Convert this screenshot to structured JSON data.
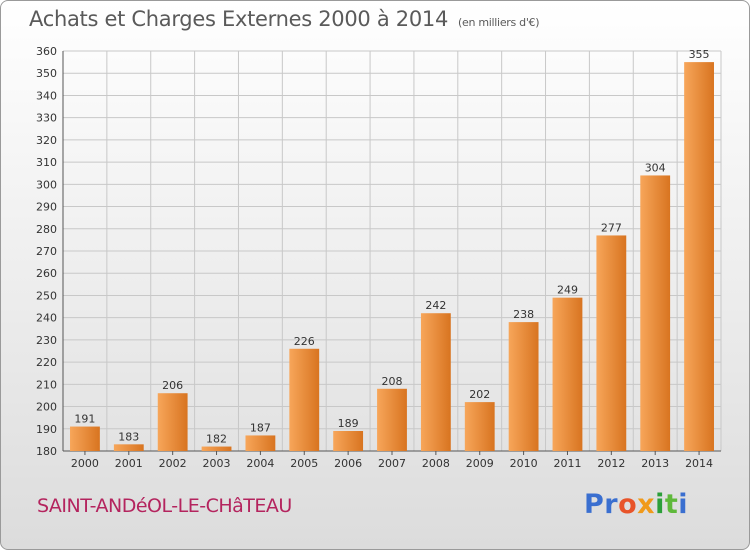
{
  "header": {
    "title": "Achats et Charges Externes 2000 à 2014",
    "subtitle": "(en milliers d'€)"
  },
  "footer": {
    "commune": "SAINT-ANDéOL-LE-CHâTEAU",
    "logo": {
      "parts": [
        "Pr",
        "o",
        "x",
        "i",
        "t",
        "i"
      ],
      "colors": [
        "#3a6fd0",
        "#e8542a",
        "#f09a1a",
        "#2c9f3a",
        "#5fb93b",
        "#3a6fd0"
      ]
    }
  },
  "colors": {
    "bar_light": "#f7a65a",
    "bar_dark": "#d87420",
    "grid": "#c8c8c8"
  },
  "chart_data": {
    "type": "bar",
    "title": "Achats et Charges Externes 2000 à 2014",
    "subtitle": "(en milliers d'€)",
    "xlabel": "",
    "ylabel": "",
    "categories": [
      "2000",
      "2001",
      "2002",
      "2003",
      "2004",
      "2005",
      "2006",
      "2007",
      "2008",
      "2009",
      "2010",
      "2011",
      "2012",
      "2013",
      "2014"
    ],
    "values": [
      191,
      183,
      206,
      182,
      187,
      226,
      189,
      208,
      242,
      202,
      238,
      249,
      277,
      304,
      355
    ],
    "ylim": [
      180,
      360
    ],
    "yticks": [
      180,
      190,
      200,
      210,
      220,
      230,
      240,
      250,
      260,
      270,
      280,
      290,
      300,
      310,
      320,
      330,
      340,
      350,
      360
    ],
    "grid": true,
    "data_labels": true
  }
}
